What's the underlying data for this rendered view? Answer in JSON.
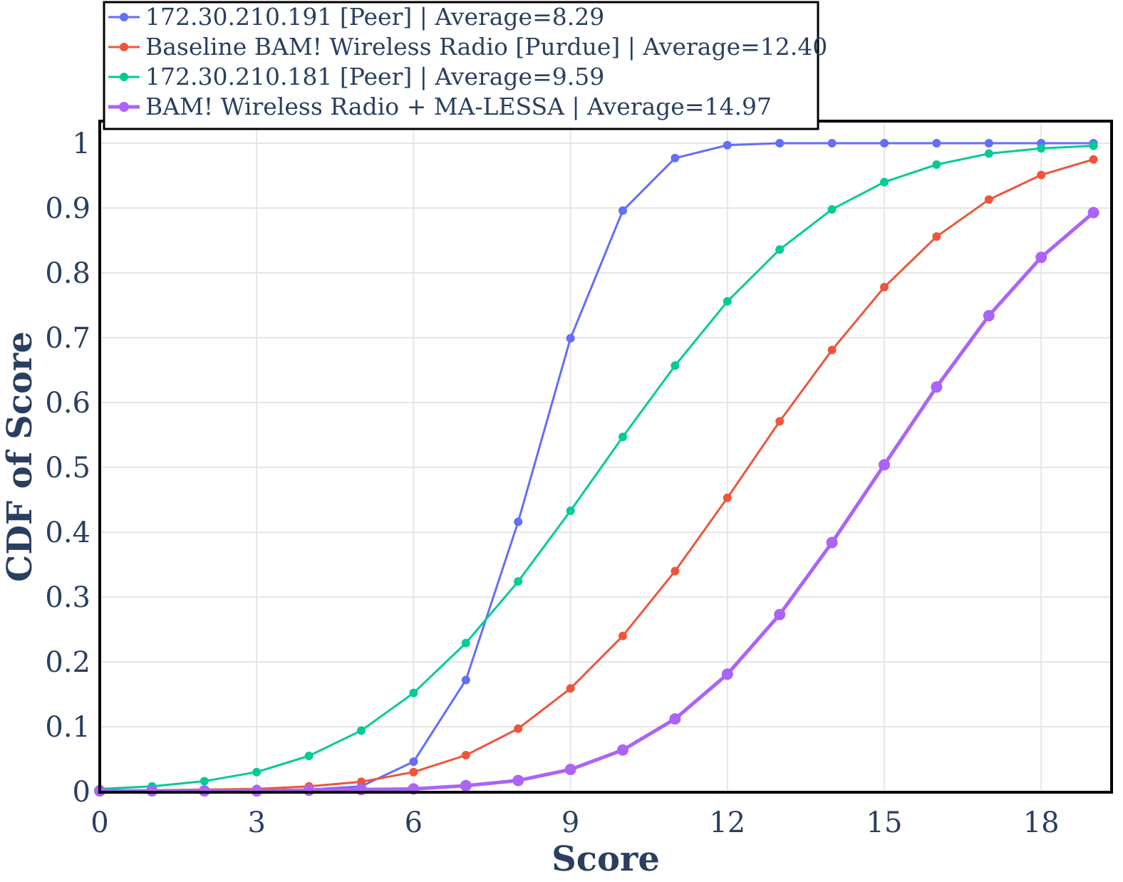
{
  "chart_data": {
    "type": "line",
    "xlabel": "Score",
    "ylabel": "CDF of Score",
    "xlim": [
      0,
      19
    ],
    "ylim": [
      0,
      1
    ],
    "xticks": [
      "0",
      "3",
      "6",
      "9",
      "12",
      "15",
      "18"
    ],
    "yticks": [
      "0",
      "0.1",
      "0.2",
      "0.3",
      "0.4",
      "0.5",
      "0.6",
      "0.7",
      "0.8",
      "0.9",
      "1"
    ],
    "grid": true,
    "legend_position": "top-left, above plot",
    "x": [
      0,
      1,
      2,
      3,
      4,
      5,
      6,
      7,
      8,
      9,
      10,
      11,
      12,
      13,
      14,
      15,
      16,
      17,
      18,
      19
    ],
    "series": [
      {
        "name": "172.30.210.191 [Peer] | Average=8.29",
        "color": "#636efa",
        "values": [
          0.001,
          0.001,
          0.001,
          0.002,
          0.003,
          0.008,
          0.046,
          0.172,
          0.416,
          0.699,
          0.896,
          0.977,
          0.997,
          1.0,
          1.0,
          1.0,
          1.0,
          1.0,
          1.0,
          1.0
        ]
      },
      {
        "name": "Baseline BAM! Wireless Radio [Purdue] | Average=12.40",
        "color": "#ef553b",
        "values": [
          0.001,
          0.002,
          0.003,
          0.004,
          0.008,
          0.015,
          0.03,
          0.056,
          0.097,
          0.159,
          0.24,
          0.34,
          0.453,
          0.571,
          0.681,
          0.778,
          0.856,
          0.913,
          0.951,
          0.975
        ]
      },
      {
        "name": "172.30.210.181 [Peer] | Average=9.59",
        "color": "#00cc96",
        "values": [
          0.004,
          0.008,
          0.016,
          0.03,
          0.055,
          0.094,
          0.152,
          0.229,
          0.324,
          0.433,
          0.547,
          0.657,
          0.756,
          0.836,
          0.898,
          0.94,
          0.967,
          0.984,
          0.992,
          0.996
        ]
      },
      {
        "name": "BAM! Wireless Radio + MA-LESSA | Average=14.97",
        "color": "#ab63fa",
        "values": [
          0.001,
          0.001,
          0.001,
          0.001,
          0.002,
          0.003,
          0.004,
          0.009,
          0.017,
          0.034,
          0.064,
          0.112,
          0.181,
          0.273,
          0.384,
          0.504,
          0.624,
          0.734,
          0.824,
          0.893
        ]
      }
    ]
  }
}
